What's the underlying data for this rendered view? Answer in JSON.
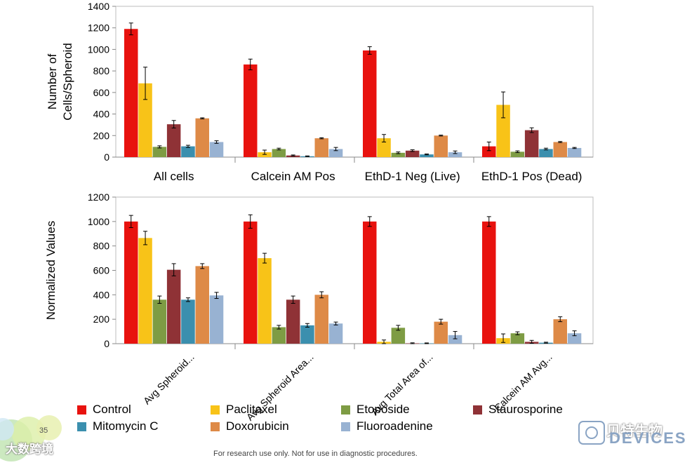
{
  "chart_data": [
    {
      "type": "bar",
      "title": "",
      "xlabel": "",
      "ylabel": "Number of\nCells/Spheroid",
      "ylim": [
        0,
        1400
      ],
      "yticks": [
        0,
        200,
        400,
        600,
        800,
        1000,
        1200,
        1400
      ],
      "categories": [
        "All cells",
        "Calcein AM Pos",
        "EthD-1 Neg (Live)",
        "EthD-1 Pos (Dead)"
      ],
      "series": [
        {
          "name": "Control",
          "values": [
            1190,
            860,
            990,
            100
          ],
          "errors": [
            55,
            50,
            35,
            40
          ]
        },
        {
          "name": "Paclitaxel",
          "values": [
            685,
            45,
            175,
            485
          ],
          "errors": [
            150,
            20,
            35,
            120
          ]
        },
        {
          "name": "Etoposide",
          "values": [
            95,
            75,
            40,
            50
          ],
          "errors": [
            10,
            8,
            8,
            8
          ]
        },
        {
          "name": "Staurosporine",
          "values": [
            305,
            15,
            60,
            250
          ],
          "errors": [
            35,
            5,
            8,
            22
          ]
        },
        {
          "name": "Mitomycin C",
          "values": [
            100,
            8,
            25,
            75
          ],
          "errors": [
            10,
            3,
            4,
            8
          ]
        },
        {
          "name": "Doxorubicin",
          "values": [
            360,
            175,
            200,
            140
          ],
          "errors": [
            5,
            5,
            4,
            5
          ]
        },
        {
          "name": "Fluoroadenine",
          "values": [
            140,
            75,
            45,
            85
          ],
          "errors": [
            12,
            15,
            12,
            5
          ]
        }
      ],
      "grid": false
    },
    {
      "type": "bar",
      "title": "",
      "xlabel": "",
      "ylabel": "Normalized Values",
      "ylim": [
        0,
        1200
      ],
      "yticks": [
        0,
        200,
        400,
        600,
        800,
        1000,
        1200
      ],
      "categories": [
        "Avg Spheroid...",
        "Avg Spheroid Area...",
        "Avg Total Area of...",
        "Calcein AM Avg..."
      ],
      "series": [
        {
          "name": "Control",
          "values": [
            1000,
            1000,
            1000,
            1000
          ],
          "errors": [
            50,
            55,
            40,
            40
          ]
        },
        {
          "name": "Paclitaxel",
          "values": [
            865,
            700,
            15,
            45
          ],
          "errors": [
            55,
            40,
            15,
            35
          ]
        },
        {
          "name": "Etoposide",
          "values": [
            360,
            135,
            130,
            85
          ],
          "errors": [
            30,
            15,
            20,
            12
          ]
        },
        {
          "name": "Staurosporine",
          "values": [
            605,
            360,
            3,
            15
          ],
          "errors": [
            50,
            30,
            4,
            12
          ]
        },
        {
          "name": "Mitomycin C",
          "values": [
            360,
            150,
            3,
            8
          ],
          "errors": [
            15,
            15,
            3,
            4
          ]
        },
        {
          "name": "Doxorubicin",
          "values": [
            635,
            400,
            180,
            200
          ],
          "errors": [
            20,
            25,
            20,
            20
          ]
        },
        {
          "name": "Fluoroadenine",
          "values": [
            395,
            165,
            70,
            85
          ],
          "errors": [
            25,
            12,
            30,
            20
          ]
        }
      ],
      "grid": false
    }
  ],
  "colors": {
    "Control": "#e8120e",
    "Paclitaxel": "#f8c318",
    "Etoposide": "#7e9c44",
    "Staurosporine": "#8f3236",
    "Mitomycin C": "#3b8fae",
    "Doxorubicin": "#de8a47",
    "Fluoroadenine": "#98b2d2"
  },
  "legend": [
    "Control",
    "Paclitaxel",
    "Etoposide",
    "Staurosporine",
    "Mitomycin C",
    "Doxorubicin",
    "Fluoroadenine"
  ],
  "footer": "For research use only. Not for use in diagnostic procedures.",
  "slide_number": "35",
  "watermark_left": "大数跨境",
  "watermark_right": "贝特生物",
  "logo_text": "DEVICES"
}
